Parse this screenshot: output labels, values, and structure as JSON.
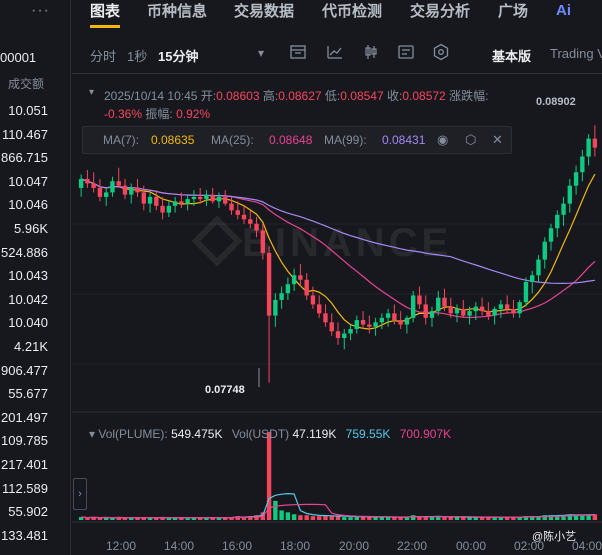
{
  "sidebar": {
    "menu_dots": "···",
    "pair_fragment": "00001",
    "column_header": "成交额",
    "rows": [
      "10.051",
      "110.467",
      "866.715",
      "10.047",
      "10.046",
      "5.96K",
      "524.886",
      "10.043",
      "10.042",
      "10.040",
      "4.21K",
      "906.477",
      "55.677",
      "201.497",
      "109.785",
      "217.401",
      "112.589",
      "55.902",
      "133.481"
    ],
    "expand_arrow": "›"
  },
  "nav": {
    "tabs": [
      "图表",
      "币种信息",
      "交易数据",
      "代币检测",
      "交易分析",
      "广场"
    ],
    "active_tab": "图表",
    "ai_label": "Ai"
  },
  "toolbar": {
    "intervals": [
      "分时",
      "1秒",
      "15分钟"
    ],
    "selected_interval": "15分钟",
    "dropdown": "▾",
    "basic_label": "基本版",
    "tradingview_label": "Trading V"
  },
  "ohlc": {
    "datetime": "2025/10/14 10:45",
    "open_label": "开:",
    "open": "0.08603",
    "high_label": "高:",
    "high": "0.08627",
    "low_label": "低:",
    "low": "0.08547",
    "close_label": "收:",
    "close": "0.08572",
    "change_label": "涨跌幅:",
    "change": "-0.36%",
    "amp_label": "振幅:",
    "amp": "0.92%"
  },
  "ma": {
    "ma7_label": "MA(7):",
    "ma7": "0.08635",
    "ma25_label": "MA(25):",
    "ma25": "0.08648",
    "ma99_label": "MA(99):",
    "ma99": "0.08431"
  },
  "volume": {
    "vol_label": "Vol(PLUME):",
    "vol_value": "549.475K",
    "usdt_label": "Vol(USDT)",
    "usdt_value": "47.119K",
    "ma1": "759.55K",
    "ma2": "700.907K"
  },
  "annotations": {
    "low_price": "0.07748",
    "high_price": "0.08902"
  },
  "x_axis": [
    "12:00",
    "14:00",
    "16:00",
    "18:00",
    "20:00",
    "22:00",
    "00:00",
    "02:00",
    "04:00"
  ],
  "credit": "@陈小艺",
  "colors": {
    "up": "#0ecb81",
    "down": "#f6465d",
    "accent": "#f0b90b",
    "ma7": "#f0b90b",
    "ma25": "#e84393",
    "ma99": "#a688f5",
    "vol_ma1": "#54c8e8",
    "vol_ma2": "#e84393"
  },
  "chart_data": {
    "type": "candlestick",
    "interval": "15分钟",
    "low_marker": 0.07748,
    "high_marker": 0.08902,
    "candles": [
      [
        0.0862,
        0.0868,
        0.0858,
        0.0866
      ],
      [
        0.0866,
        0.087,
        0.0862,
        0.0864
      ],
      [
        0.0864,
        0.0869,
        0.086,
        0.0862
      ],
      [
        0.0862,
        0.0866,
        0.0856,
        0.0858
      ],
      [
        0.0858,
        0.0862,
        0.0854,
        0.086
      ],
      [
        0.086,
        0.0867,
        0.0858,
        0.0865
      ],
      [
        0.0865,
        0.0871,
        0.0862,
        0.0863
      ],
      [
        0.0863,
        0.0866,
        0.0857,
        0.0859
      ],
      [
        0.0859,
        0.0864,
        0.0855,
        0.0862
      ],
      [
        0.0862,
        0.0866,
        0.0858,
        0.086
      ],
      [
        0.086,
        0.0863,
        0.0852,
        0.0855
      ],
      [
        0.0855,
        0.086,
        0.0851,
        0.0858
      ],
      [
        0.0858,
        0.0861,
        0.0852,
        0.0854
      ],
      [
        0.0854,
        0.0858,
        0.0848,
        0.0851
      ],
      [
        0.0851,
        0.0856,
        0.0849,
        0.0854
      ],
      [
        0.0854,
        0.0858,
        0.0851,
        0.0856
      ],
      [
        0.0856,
        0.086,
        0.0853,
        0.0855
      ],
      [
        0.0855,
        0.0859,
        0.0852,
        0.0857
      ],
      [
        0.0857,
        0.0861,
        0.0854,
        0.0858
      ],
      [
        0.0858,
        0.0862,
        0.0855,
        0.0857
      ],
      [
        0.0857,
        0.0861,
        0.0854,
        0.0859
      ],
      [
        0.0859,
        0.0862,
        0.0855,
        0.0856
      ],
      [
        0.0856,
        0.086,
        0.0853,
        0.0858
      ],
      [
        0.0858,
        0.0861,
        0.0854,
        0.0855
      ],
      [
        0.0855,
        0.0858,
        0.085,
        0.0852
      ],
      [
        0.0852,
        0.0856,
        0.0848,
        0.085
      ],
      [
        0.085,
        0.0854,
        0.0846,
        0.0848
      ],
      [
        0.0848,
        0.0852,
        0.0844,
        0.0846
      ],
      [
        0.0846,
        0.0849,
        0.084,
        0.0843
      ],
      [
        0.0843,
        0.0846,
        0.083,
        0.0833
      ],
      [
        0.0833,
        0.0836,
        0.0775,
        0.0805
      ],
      [
        0.0805,
        0.0815,
        0.08,
        0.0812
      ],
      [
        0.0812,
        0.0818,
        0.0808,
        0.0815
      ],
      [
        0.0815,
        0.0822,
        0.0812,
        0.0819
      ],
      [
        0.0819,
        0.0826,
        0.0816,
        0.0823
      ],
      [
        0.0823,
        0.0828,
        0.0818,
        0.0821
      ],
      [
        0.0821,
        0.0824,
        0.0812,
        0.0814
      ],
      [
        0.0814,
        0.0818,
        0.0808,
        0.081
      ],
      [
        0.081,
        0.0814,
        0.0804,
        0.0806
      ],
      [
        0.0806,
        0.081,
        0.08,
        0.0802
      ],
      [
        0.0802,
        0.0806,
        0.0796,
        0.0798
      ],
      [
        0.0798,
        0.0802,
        0.0792,
        0.0795
      ],
      [
        0.0795,
        0.0799,
        0.079,
        0.0797
      ],
      [
        0.0797,
        0.0801,
        0.0794,
        0.0799
      ],
      [
        0.0799,
        0.0805,
        0.0797,
        0.0803
      ],
      [
        0.0803,
        0.0807,
        0.0799,
        0.0801
      ],
      [
        0.0801,
        0.0805,
        0.0797,
        0.08
      ],
      [
        0.08,
        0.0804,
        0.0796,
        0.0802
      ],
      [
        0.0802,
        0.0806,
        0.0799,
        0.0804
      ],
      [
        0.0804,
        0.0808,
        0.08,
        0.0806
      ],
      [
        0.0806,
        0.081,
        0.0801,
        0.0803
      ],
      [
        0.0803,
        0.0807,
        0.0799,
        0.0801
      ],
      [
        0.0801,
        0.0805,
        0.0797,
        0.0804
      ],
      [
        0.0804,
        0.0816,
        0.0802,
        0.0814
      ],
      [
        0.0814,
        0.0818,
        0.0808,
        0.081
      ],
      [
        0.081,
        0.0814,
        0.0801,
        0.0804
      ],
      [
        0.0804,
        0.0809,
        0.08,
        0.0807
      ],
      [
        0.0807,
        0.0816,
        0.0805,
        0.0813
      ],
      [
        0.0813,
        0.0817,
        0.0807,
        0.0809
      ],
      [
        0.0809,
        0.0813,
        0.0804,
        0.0806
      ],
      [
        0.0806,
        0.081,
        0.0802,
        0.0808
      ],
      [
        0.0808,
        0.0812,
        0.0804,
        0.0805
      ],
      [
        0.0805,
        0.0809,
        0.0801,
        0.0807
      ],
      [
        0.0807,
        0.0811,
        0.0803,
        0.0809
      ],
      [
        0.0809,
        0.0813,
        0.0805,
        0.0807
      ],
      [
        0.0807,
        0.0811,
        0.0803,
        0.0805
      ],
      [
        0.0805,
        0.0809,
        0.0801,
        0.0808
      ],
      [
        0.0808,
        0.0812,
        0.0804,
        0.081
      ],
      [
        0.081,
        0.0814,
        0.0806,
        0.0808
      ],
      [
        0.0808,
        0.0812,
        0.0804,
        0.0806
      ],
      [
        0.0806,
        0.0812,
        0.0804,
        0.0811
      ],
      [
        0.0811,
        0.0822,
        0.0809,
        0.082
      ],
      [
        0.082,
        0.0825,
        0.0815,
        0.0823
      ],
      [
        0.0823,
        0.0832,
        0.082,
        0.083
      ],
      [
        0.083,
        0.084,
        0.0826,
        0.0838
      ],
      [
        0.0838,
        0.0846,
        0.0834,
        0.0844
      ],
      [
        0.0844,
        0.0852,
        0.084,
        0.085
      ],
      [
        0.085,
        0.0858,
        0.0845,
        0.0855
      ],
      [
        0.0855,
        0.0866,
        0.0851,
        0.0863
      ],
      [
        0.0863,
        0.0872,
        0.0859,
        0.0869
      ],
      [
        0.0869,
        0.0879,
        0.0865,
        0.0876
      ],
      [
        0.0876,
        0.0886,
        0.0872,
        0.0884
      ],
      [
        0.0884,
        0.089,
        0.0876,
        0.088
      ]
    ],
    "volumes": [
      3,
      2,
      3,
      2,
      3,
      2,
      3,
      2,
      2,
      3,
      2,
      3,
      2,
      3,
      2,
      2,
      3,
      2,
      3,
      2,
      2,
      3,
      2,
      3,
      3,
      4,
      3,
      4,
      5,
      8,
      92,
      20,
      10,
      8,
      6,
      5,
      5,
      4,
      4,
      5,
      4,
      4,
      3,
      3,
      3,
      4,
      3,
      3,
      3,
      3,
      3,
      3,
      3,
      5,
      4,
      3,
      3,
      4,
      3,
      3,
      3,
      3,
      3,
      3,
      3,
      3,
      3,
      3,
      3,
      3,
      3,
      4,
      4,
      4,
      5,
      5,
      5,
      5,
      6,
      5,
      5,
      6,
      6
    ],
    "price_range": [
      0.077,
      0.0895
    ]
  }
}
